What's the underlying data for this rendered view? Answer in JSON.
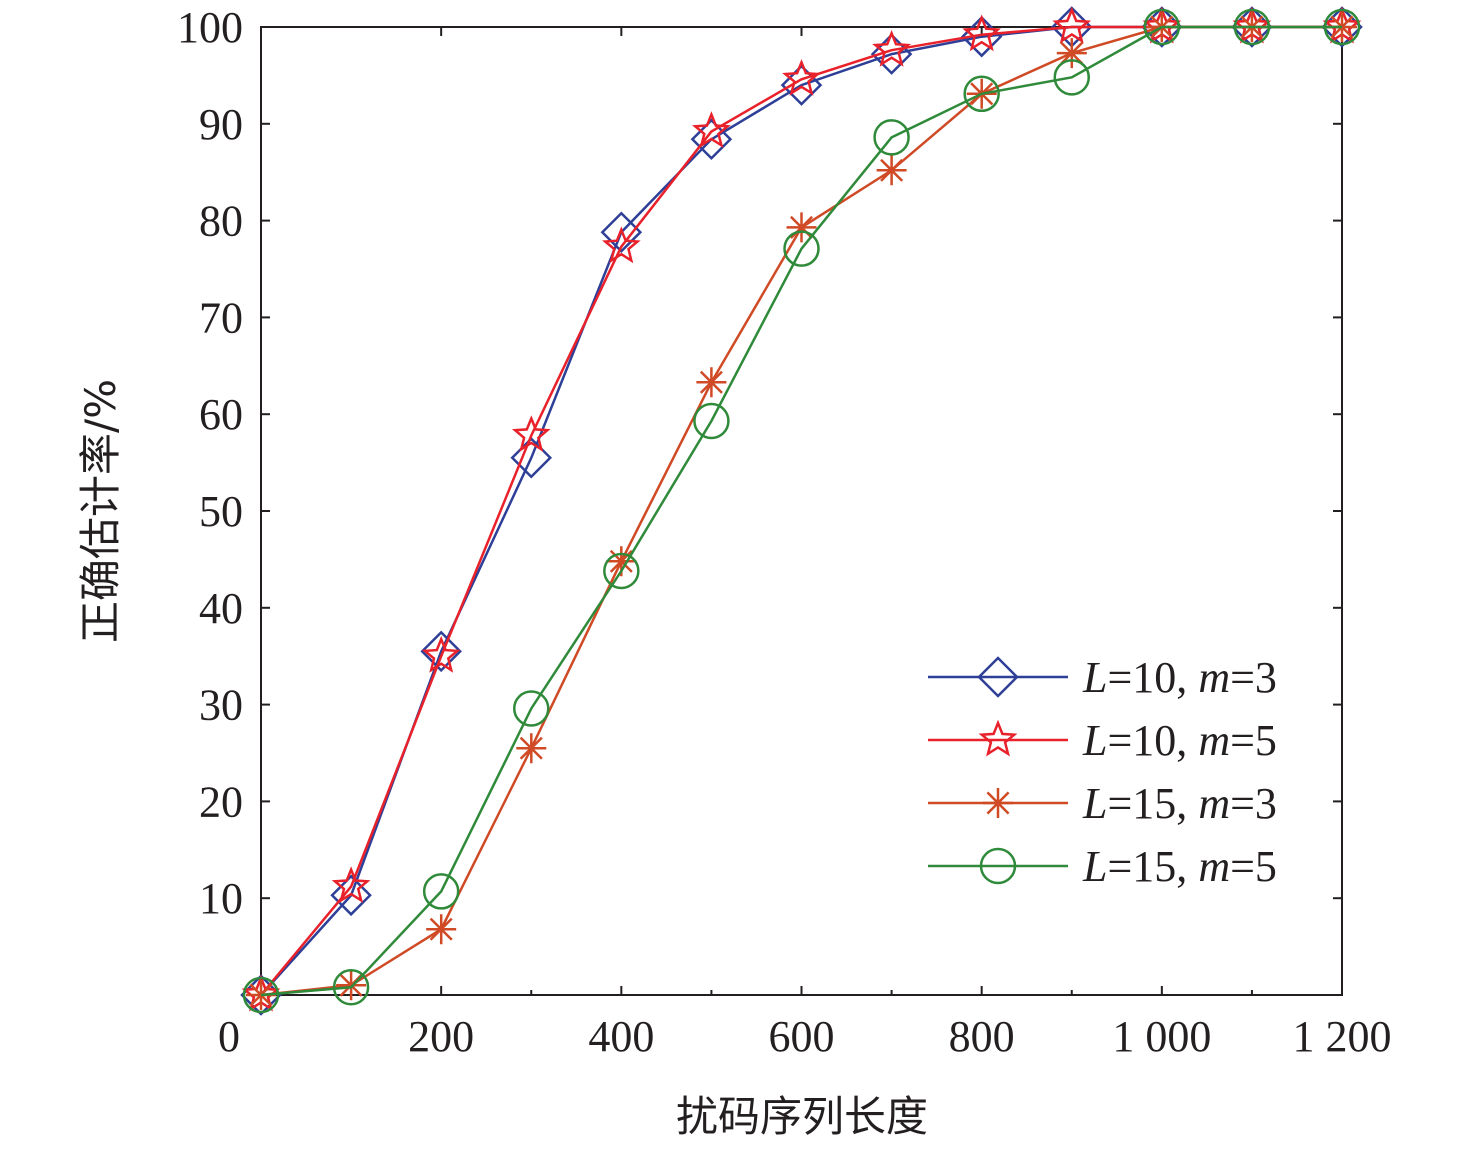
{
  "chart_data": {
    "type": "line",
    "title": "",
    "xlabel": "扰码序列长度",
    "ylabel": "正确估计率/%",
    "xlim": [
      0,
      1200
    ],
    "ylim": [
      0,
      100
    ],
    "x_ticks": [
      0,
      200,
      400,
      600,
      800,
      1000,
      1200
    ],
    "x_tick_labels": [
      "0",
      "200",
      "400",
      "600",
      "800",
      "1 000",
      "1 200"
    ],
    "y_ticks": [
      10,
      20,
      30,
      40,
      50,
      60,
      70,
      80,
      90,
      100
    ],
    "y_tick_labels": [
      "10",
      "20",
      "30",
      "40",
      "50",
      "60",
      "70",
      "80",
      "90",
      "100"
    ],
    "grid": false,
    "legend_position": "bottom-right",
    "x": [
      0,
      100,
      200,
      300,
      400,
      500,
      600,
      700,
      800,
      900,
      1000,
      1100,
      1200
    ],
    "series": [
      {
        "name": "L=10, m=3",
        "label_parts": [
          "L",
          "=10, ",
          "m",
          "=3"
        ],
        "color": "#2e3f97",
        "marker": "diamond",
        "values": [
          0,
          10.3,
          35.5,
          55.5,
          78.8,
          88.4,
          94.0,
          97.2,
          99.0,
          100,
          100,
          100,
          100
        ]
      },
      {
        "name": "L=10, m=5",
        "label_parts": [
          "L",
          "=10, ",
          "m",
          "=5"
        ],
        "color": "#e8212a",
        "marker": "star",
        "values": [
          0,
          11.2,
          35.0,
          57.8,
          77.3,
          89.2,
          94.6,
          97.6,
          99.2,
          100,
          100,
          100,
          100
        ]
      },
      {
        "name": "L=15, m=3",
        "label_parts": [
          "L",
          "=15, ",
          "m",
          "=3"
        ],
        "color": "#cf4a25",
        "marker": "asterisk",
        "values": [
          0,
          1.0,
          6.8,
          25.5,
          44.8,
          63.3,
          79.3,
          85.2,
          93.1,
          97.3,
          100,
          100,
          100
        ]
      },
      {
        "name": "L=15, m=5",
        "label_parts": [
          "L",
          "=15, ",
          "m",
          "=5"
        ],
        "color": "#2f8a3a",
        "marker": "circle",
        "values": [
          0,
          0.8,
          10.7,
          29.6,
          43.8,
          59.3,
          77.1,
          88.6,
          93.1,
          94.8,
          100,
          100,
          100
        ]
      }
    ]
  }
}
